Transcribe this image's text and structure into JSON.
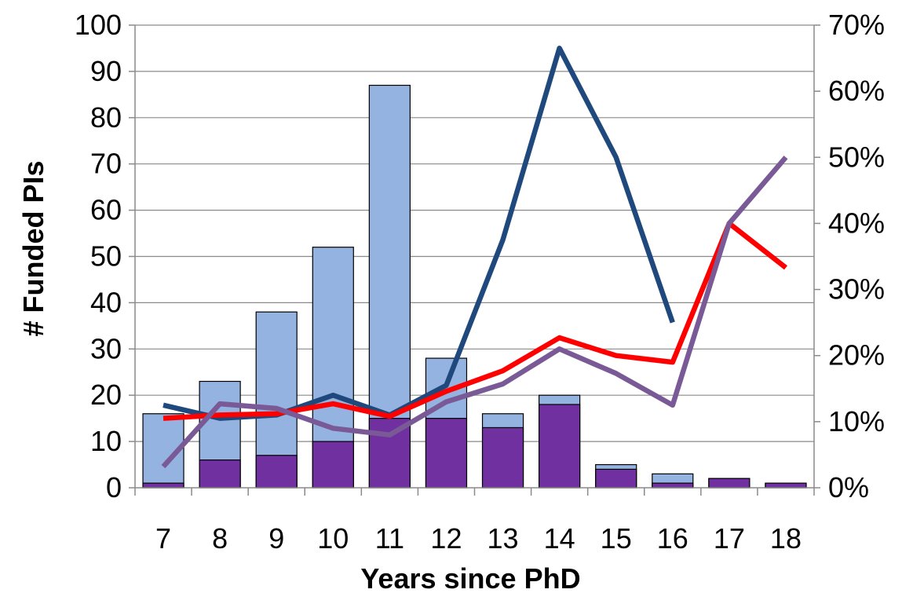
{
  "chart_data": {
    "type": "bar",
    "categories": [
      "7",
      "8",
      "9",
      "10",
      "11",
      "12",
      "13",
      "14",
      "15",
      "16",
      "17",
      "18"
    ],
    "xlabel": "Years since PhD",
    "ylabel": "# Funded PIs",
    "ylim": [
      0,
      100
    ],
    "yticks": [
      "0",
      "10",
      "20",
      "30",
      "40",
      "50",
      "60",
      "70",
      "80",
      "90",
      "100"
    ],
    "y2lim": [
      0,
      0.7
    ],
    "y2ticks": [
      "0%",
      "10%",
      "20%",
      "30%",
      "40%",
      "50%",
      "60%",
      "70%"
    ],
    "grid": true,
    "bars": [
      {
        "color": "#95b3e0",
        "values": [
          16,
          23,
          38,
          52,
          87,
          28,
          16,
          20,
          5,
          3,
          2,
          1
        ]
      },
      {
        "color": "#7030a0",
        "values": [
          1,
          6,
          7,
          10,
          15,
          15,
          13,
          18,
          4,
          1,
          2,
          1
        ]
      }
    ],
    "lines": [
      {
        "color": "#1f497d",
        "values": [
          0.125,
          0.105,
          0.11,
          0.14,
          0.11,
          0.155,
          0.375,
          0.665,
          0.5,
          0.25,
          null,
          null
        ]
      },
      {
        "color": "#ff0000",
        "values": [
          0.105,
          0.11,
          0.112,
          0.127,
          0.108,
          0.146,
          0.177,
          0.227,
          0.2,
          0.19,
          0.4,
          0.333
        ]
      },
      {
        "color": "#7a5a96",
        "values": [
          0.032,
          0.127,
          0.12,
          0.09,
          0.08,
          0.13,
          0.157,
          0.21,
          0.173,
          0.125,
          0.4,
          0.5
        ]
      }
    ]
  }
}
